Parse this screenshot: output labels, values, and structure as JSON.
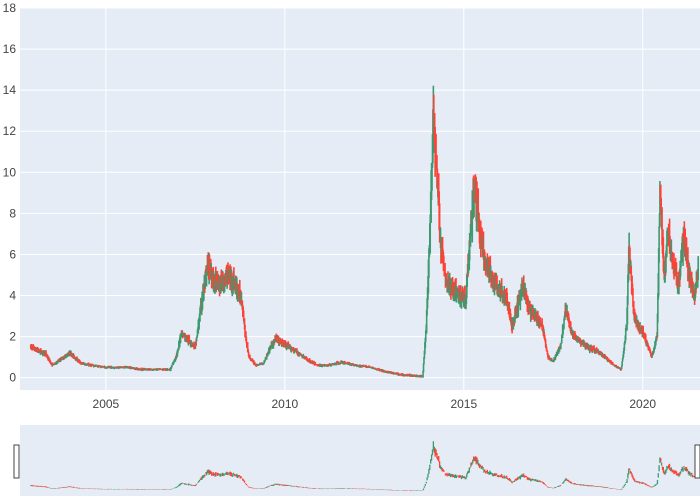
{
  "chart_data": {
    "type": "candlestick",
    "title": "",
    "xlabel": "",
    "ylabel": "",
    "x_ticks": [
      "2005",
      "2010",
      "2015",
      "2020"
    ],
    "x_tick_years": [
      2005,
      2010,
      2015,
      2020
    ],
    "xlim": [
      2002.6,
      2021.6
    ],
    "ylim": [
      -0.6,
      18
    ],
    "y_ticks": [
      0,
      2,
      4,
      6,
      8,
      10,
      12,
      14,
      16,
      18
    ],
    "grid": true,
    "legend": "none",
    "colors": {
      "increasing": "#3d9970",
      "decreasing": "#ff4136",
      "plot_bg": "#e5ecf6",
      "grid": "#ffffff",
      "rangeslider_bg": "#e5ecf6"
    },
    "rangeslider": true,
    "series": [
      {
        "name": "",
        "points": [
          {
            "x": 2002.9,
            "y": 1.5
          },
          {
            "x": 2003.1,
            "y": 1.3
          },
          {
            "x": 2003.3,
            "y": 1.2
          },
          {
            "x": 2003.5,
            "y": 0.6
          },
          {
            "x": 2004.0,
            "y": 1.2
          },
          {
            "x": 2004.3,
            "y": 0.7
          },
          {
            "x": 2004.6,
            "y": 0.6
          },
          {
            "x": 2005.0,
            "y": 0.5
          },
          {
            "x": 2005.6,
            "y": 0.5
          },
          {
            "x": 2006.0,
            "y": 0.4
          },
          {
            "x": 2006.8,
            "y": 0.4
          },
          {
            "x": 2007.0,
            "y": 1.2
          },
          {
            "x": 2007.1,
            "y": 2.2
          },
          {
            "x": 2007.5,
            "y": 1.5
          },
          {
            "x": 2007.7,
            "y": 4.0
          },
          {
            "x": 2007.85,
            "y": 5.5
          },
          {
            "x": 2008.0,
            "y": 4.8
          },
          {
            "x": 2008.2,
            "y": 4.5
          },
          {
            "x": 2008.4,
            "y": 5.0
          },
          {
            "x": 2008.6,
            "y": 4.6
          },
          {
            "x": 2008.8,
            "y": 3.8
          },
          {
            "x": 2008.9,
            "y": 2.0
          },
          {
            "x": 2009.0,
            "y": 1.0
          },
          {
            "x": 2009.2,
            "y": 0.6
          },
          {
            "x": 2009.4,
            "y": 0.7
          },
          {
            "x": 2009.6,
            "y": 1.5
          },
          {
            "x": 2009.75,
            "y": 1.9
          },
          {
            "x": 2010.0,
            "y": 1.6
          },
          {
            "x": 2010.3,
            "y": 1.3
          },
          {
            "x": 2010.6,
            "y": 0.9
          },
          {
            "x": 2010.9,
            "y": 0.6
          },
          {
            "x": 2011.2,
            "y": 0.6
          },
          {
            "x": 2011.6,
            "y": 0.75
          },
          {
            "x": 2012.0,
            "y": 0.6
          },
          {
            "x": 2012.4,
            "y": 0.5
          },
          {
            "x": 2012.8,
            "y": 0.3
          },
          {
            "x": 2013.2,
            "y": 0.15
          },
          {
            "x": 2013.6,
            "y": 0.1
          },
          {
            "x": 2013.85,
            "y": 0.05
          },
          {
            "x": 2013.95,
            "y": 2.5
          },
          {
            "x": 2014.05,
            "y": 7.0
          },
          {
            "x": 2014.15,
            "y": 12.5
          },
          {
            "x": 2014.25,
            "y": 10.0
          },
          {
            "x": 2014.35,
            "y": 6.5
          },
          {
            "x": 2014.5,
            "y": 4.8
          },
          {
            "x": 2014.7,
            "y": 4.3
          },
          {
            "x": 2014.9,
            "y": 4.0
          },
          {
            "x": 2015.05,
            "y": 3.8
          },
          {
            "x": 2015.2,
            "y": 7.5
          },
          {
            "x": 2015.3,
            "y": 9.5
          },
          {
            "x": 2015.45,
            "y": 7.0
          },
          {
            "x": 2015.6,
            "y": 5.5
          },
          {
            "x": 2015.8,
            "y": 4.8
          },
          {
            "x": 2016.0,
            "y": 4.3
          },
          {
            "x": 2016.2,
            "y": 3.8
          },
          {
            "x": 2016.35,
            "y": 2.5
          },
          {
            "x": 2016.5,
            "y": 3.5
          },
          {
            "x": 2016.65,
            "y": 4.5
          },
          {
            "x": 2016.8,
            "y": 3.5
          },
          {
            "x": 2017.0,
            "y": 3.0
          },
          {
            "x": 2017.2,
            "y": 2.5
          },
          {
            "x": 2017.35,
            "y": 1.0
          },
          {
            "x": 2017.5,
            "y": 0.8
          },
          {
            "x": 2017.7,
            "y": 1.5
          },
          {
            "x": 2017.85,
            "y": 3.5
          },
          {
            "x": 2018.0,
            "y": 2.2
          },
          {
            "x": 2018.2,
            "y": 1.8
          },
          {
            "x": 2018.45,
            "y": 1.5
          },
          {
            "x": 2018.7,
            "y": 1.3
          },
          {
            "x": 2018.95,
            "y": 1.0
          },
          {
            "x": 2019.2,
            "y": 0.6
          },
          {
            "x": 2019.4,
            "y": 0.4
          },
          {
            "x": 2019.55,
            "y": 2.5
          },
          {
            "x": 2019.62,
            "y": 6.5
          },
          {
            "x": 2019.75,
            "y": 3.0
          },
          {
            "x": 2019.9,
            "y": 2.5
          },
          {
            "x": 2020.05,
            "y": 2.0
          },
          {
            "x": 2020.25,
            "y": 1.0
          },
          {
            "x": 2020.4,
            "y": 2.0
          },
          {
            "x": 2020.48,
            "y": 9.0
          },
          {
            "x": 2020.6,
            "y": 5.0
          },
          {
            "x": 2020.7,
            "y": 7.0
          },
          {
            "x": 2020.85,
            "y": 5.5
          },
          {
            "x": 2021.0,
            "y": 4.5
          },
          {
            "x": 2021.15,
            "y": 7.0
          },
          {
            "x": 2021.3,
            "y": 5.0
          },
          {
            "x": 2021.45,
            "y": 4.0
          },
          {
            "x": 2021.55,
            "y": 5.5
          }
        ]
      }
    ]
  }
}
